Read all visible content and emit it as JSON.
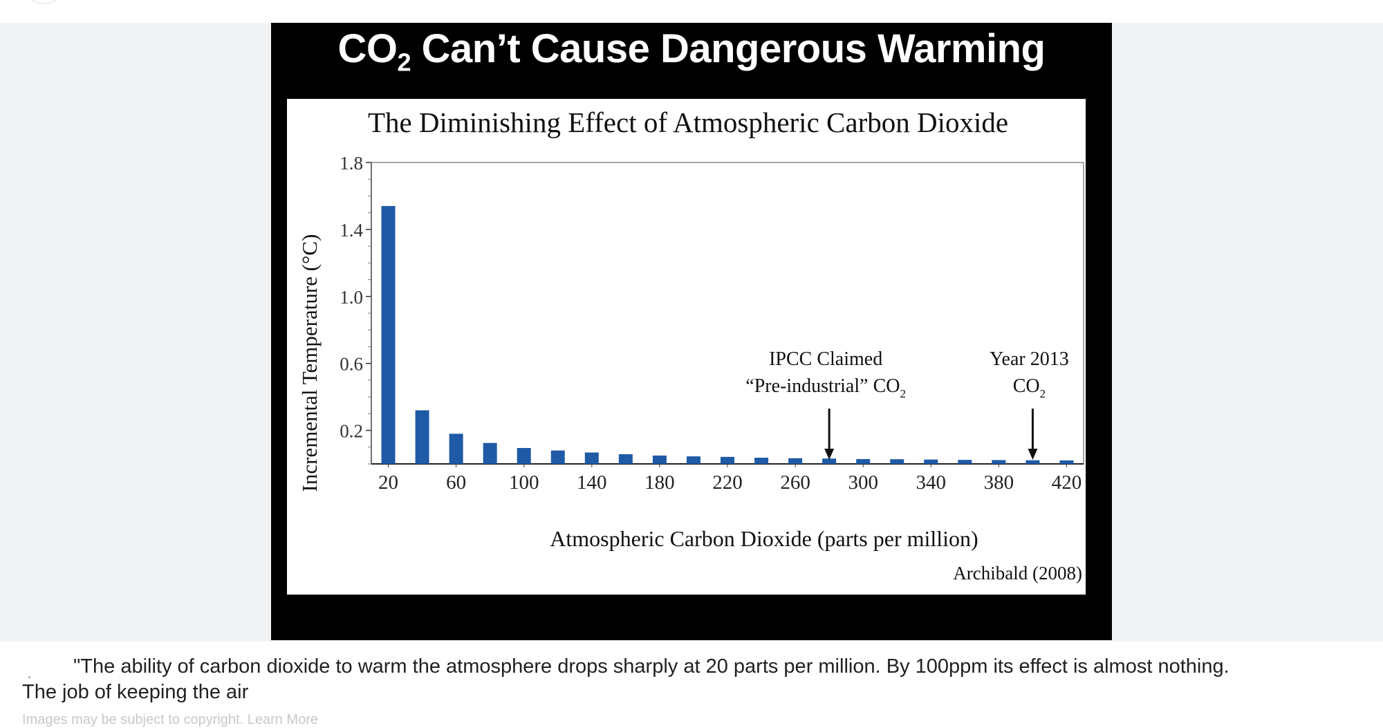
{
  "viewer": {
    "slide_title_main": "CO",
    "slide_title_sub": "2",
    "slide_title_rest": " Can’t Cause Dangerous Warming"
  },
  "chart_data": {
    "type": "bar",
    "title": "The Diminishing Effect of Atmospheric Carbon Dioxide",
    "xlabel": "Atmospheric Carbon Dioxide (parts per million)",
    "ylabel": "Incremental Temperature (°C)",
    "xlim": [
      10,
      430
    ],
    "ylim": [
      0,
      1.8
    ],
    "x_ticks": [
      20,
      60,
      100,
      140,
      180,
      220,
      260,
      300,
      340,
      380,
      420
    ],
    "y_ticks": [
      0.2,
      0.6,
      1.0,
      1.4,
      1.8
    ],
    "x_tick_labels": [
      "20",
      "60",
      "100",
      "140",
      "180",
      "220",
      "260",
      "300",
      "340",
      "380",
      "420"
    ],
    "y_tick_labels": [
      "0.2",
      "0.6",
      "1.0",
      "1.4",
      "1.8"
    ],
    "categories": [
      20,
      40,
      60,
      80,
      100,
      120,
      140,
      160,
      180,
      200,
      220,
      240,
      260,
      280,
      300,
      320,
      340,
      360,
      380,
      400,
      420
    ],
    "values": [
      1.54,
      0.32,
      0.18,
      0.125,
      0.095,
      0.08,
      0.068,
      0.058,
      0.05,
      0.045,
      0.042,
      0.037,
      0.034,
      0.032,
      0.029,
      0.028,
      0.026,
      0.024,
      0.023,
      0.022,
      0.021
    ],
    "bar_color": "#1f5aa6",
    "annotations": [
      {
        "x": 280,
        "line1": "IPCC Claimed",
        "line2": "“Pre-industrial” CO",
        "sub": "2"
      },
      {
        "x": 400,
        "line1": "Year 2013",
        "line2": "CO",
        "sub": "2"
      }
    ],
    "source": "Archibald (2008)"
  },
  "caption": {
    "text": "\"The ability of carbon dioxide to warm the atmosphere drops sharply at 20 parts per million. By 100ppm its effect is almost nothing. The job of keeping the air",
    "copyright": "Images may be subject to copyright.",
    "learn_more": "Learn More"
  }
}
